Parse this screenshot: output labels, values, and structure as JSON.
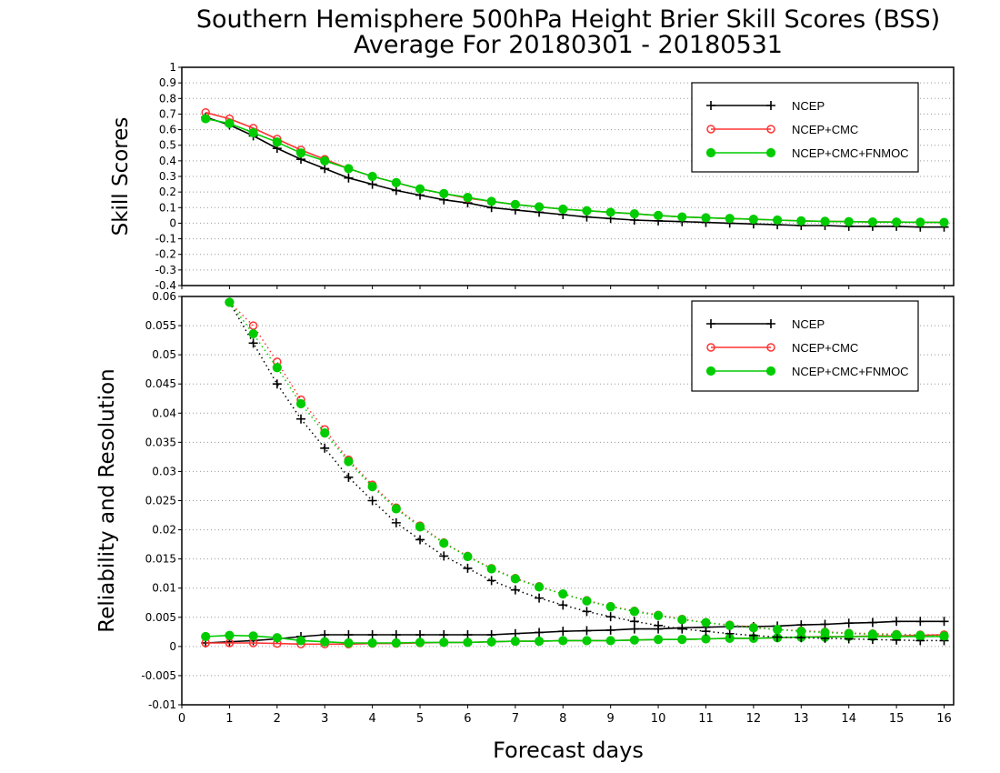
{
  "title_line1": "Southern Hemisphere 500hPa Height Brier Skill Scores (BSS)",
  "title_line2": "Average For 20180301 - 20180531",
  "xlabel": "Forecast days",
  "colors": {
    "NCEP": "#000000",
    "NCEP+CMC": "#ff3333",
    "NCEP+CMC+FNMOC": "#00cc00"
  },
  "chart_data": [
    {
      "type": "line",
      "ylabel": "Skill Scores",
      "xlim": [
        0,
        16.2
      ],
      "ylim": [
        -0.4,
        1
      ],
      "xticks": [
        "0",
        "1",
        "2",
        "3",
        "4",
        "5",
        "6",
        "7",
        "8",
        "9",
        "10",
        "11",
        "12",
        "13",
        "14",
        "15",
        "16"
      ],
      "yticks": [
        "-0.4",
        "-0.3",
        "-0.2",
        "-0.1",
        "0",
        "0.1",
        "0.2",
        "0.3",
        "0.4",
        "0.5",
        "0.6",
        "0.7",
        "0.8",
        "0.9",
        "1"
      ],
      "grid": true,
      "legend_position": "top-right",
      "x": [
        0.5,
        1,
        1.5,
        2,
        2.5,
        3,
        3.5,
        4,
        4.5,
        5,
        5.5,
        6,
        6.5,
        7,
        7.5,
        8,
        8.5,
        9,
        9.5,
        10,
        10.5,
        11,
        11.5,
        12,
        12.5,
        13,
        13.5,
        14,
        14.5,
        15,
        15.5,
        16
      ],
      "series": [
        {
          "name": "NCEP",
          "marker": "plus",
          "values": [
            0.68,
            0.63,
            0.56,
            0.48,
            0.41,
            0.35,
            0.29,
            0.25,
            0.21,
            0.18,
            0.15,
            0.13,
            0.1,
            0.085,
            0.07,
            0.055,
            0.04,
            0.03,
            0.02,
            0.015,
            0.01,
            0.005,
            0.0,
            -0.005,
            -0.01,
            -0.015,
            -0.015,
            -0.02,
            -0.02,
            -0.02,
            -0.025,
            -0.025
          ]
        },
        {
          "name": "NCEP+CMC",
          "marker": "circle-open",
          "values": [
            0.71,
            0.67,
            0.61,
            0.54,
            0.47,
            0.41,
            0.35,
            0.3,
            0.26,
            0.22,
            0.19,
            0.16,
            0.14,
            0.12,
            0.105,
            0.09,
            0.08,
            0.07,
            0.06,
            0.05,
            0.04,
            0.035,
            0.03,
            0.025,
            0.02,
            0.015,
            0.012,
            0.01,
            0.008,
            0.007,
            0.006,
            0.005
          ]
        },
        {
          "name": "NCEP+CMC+FNMOC",
          "marker": "circle-filled",
          "values": [
            0.67,
            0.64,
            0.58,
            0.52,
            0.45,
            0.4,
            0.35,
            0.3,
            0.26,
            0.22,
            0.19,
            0.165,
            0.14,
            0.12,
            0.105,
            0.09,
            0.08,
            0.07,
            0.06,
            0.05,
            0.04,
            0.035,
            0.03,
            0.025,
            0.02,
            0.015,
            0.012,
            0.01,
            0.008,
            0.007,
            0.006,
            0.005
          ]
        }
      ]
    },
    {
      "type": "line",
      "ylabel": "Reliability and Resolution",
      "xlim": [
        0,
        16.2
      ],
      "ylim": [
        -0.01,
        0.06
      ],
      "xticks": [
        "0",
        "1",
        "2",
        "3",
        "4",
        "5",
        "6",
        "7",
        "8",
        "9",
        "10",
        "11",
        "12",
        "13",
        "14",
        "15",
        "16"
      ],
      "yticks": [
        "-0.01",
        "-0.005",
        "0",
        "0.005",
        "0.01",
        "0.015",
        "0.02",
        "0.025",
        "0.03",
        "0.035",
        "0.04",
        "0.045",
        "0.05",
        "0.055",
        "0.06"
      ],
      "grid": true,
      "legend_position": "top-right",
      "x": [
        0.5,
        1,
        1.5,
        2,
        2.5,
        3,
        3.5,
        4,
        4.5,
        5,
        5.5,
        6,
        6.5,
        7,
        7.5,
        8,
        8.5,
        9,
        9.5,
        10,
        10.5,
        11,
        11.5,
        12,
        12.5,
        13,
        13.5,
        14,
        14.5,
        15,
        15.5,
        16
      ],
      "series": [
        {
          "name": "NCEP",
          "marker": "plus",
          "line": "solid",
          "values": [
            0.0006,
            0.0008,
            0.001,
            0.0013,
            0.0017,
            0.002,
            0.002,
            0.002,
            0.002,
            0.002,
            0.002,
            0.002,
            0.002,
            0.0022,
            0.0024,
            0.0026,
            0.0027,
            0.0028,
            0.003,
            0.003,
            0.0032,
            0.0033,
            0.0034,
            0.0034,
            0.0035,
            0.0037,
            0.0038,
            0.004,
            0.0041,
            0.0043,
            0.0043,
            0.0043
          ]
        },
        {
          "name": "NCEP+CMC",
          "marker": "circle-open",
          "line": "solid",
          "values": [
            0.0006,
            0.0006,
            0.0006,
            0.0005,
            0.0004,
            0.0004,
            0.0004,
            0.0005,
            0.0005,
            0.0006,
            0.0007,
            0.0007,
            0.0008,
            0.0009,
            0.0009,
            0.001,
            0.001,
            0.001,
            0.0011,
            0.0012,
            0.0012,
            0.0013,
            0.0014,
            0.0014,
            0.0015,
            0.0016,
            0.0017,
            0.0017,
            0.0018,
            0.0018,
            0.0019,
            0.002
          ]
        },
        {
          "name": "NCEP+CMC+FNMOC",
          "marker": "circle-filled",
          "line": "solid",
          "values": [
            0.0017,
            0.0019,
            0.0018,
            0.0015,
            0.001,
            0.0008,
            0.0006,
            0.0006,
            0.0006,
            0.0007,
            0.0007,
            0.0007,
            0.0008,
            0.0009,
            0.0009,
            0.001,
            0.001,
            0.001,
            0.0011,
            0.0012,
            0.0012,
            0.0013,
            0.0014,
            0.0014,
            0.0015,
            0.0016,
            0.0016,
            0.0017,
            0.0017,
            0.0017,
            0.0017,
            0.0017
          ]
        },
        {
          "name": "NCEP",
          "marker": "plus",
          "line": "dotted",
          "values": [
            null,
            0.059,
            0.052,
            0.045,
            0.039,
            0.034,
            0.029,
            0.025,
            0.0212,
            0.0183,
            0.0155,
            0.0134,
            0.0113,
            0.0097,
            0.0083,
            0.0071,
            0.006,
            0.0051,
            0.0043,
            0.0036,
            0.003,
            0.0026,
            0.0022,
            0.0019,
            0.0016,
            0.0015,
            0.0014,
            0.0013,
            0.0012,
            0.0011,
            0.001,
            0.001
          ]
        },
        {
          "name": "NCEP+CMC",
          "marker": "circle-open",
          "line": "dotted",
          "values": [
            null,
            0.059,
            0.055,
            0.0488,
            0.0423,
            0.0372,
            0.032,
            0.0277,
            0.0238,
            0.0207,
            0.0178,
            0.0155,
            0.0134,
            0.0117,
            0.0103,
            0.009,
            0.0079,
            0.0069,
            0.0061,
            0.0054,
            0.0047,
            0.0041,
            0.0037,
            0.0033,
            0.0029,
            0.0027,
            0.0025,
            0.0023,
            0.0022,
            0.0021,
            0.002,
            0.002
          ]
        },
        {
          "name": "NCEP+CMC+FNMOC",
          "marker": "circle-filled",
          "line": "dotted",
          "values": [
            null,
            0.059,
            0.0536,
            0.0478,
            0.0416,
            0.0366,
            0.0317,
            0.0274,
            0.0236,
            0.0205,
            0.0177,
            0.0154,
            0.0133,
            0.0116,
            0.0102,
            0.009,
            0.0078,
            0.0068,
            0.006,
            0.0053,
            0.0046,
            0.0041,
            0.0036,
            0.0032,
            0.0029,
            0.0026,
            0.0024,
            0.0022,
            0.0021,
            0.002,
            0.0019,
            0.0018
          ]
        }
      ]
    }
  ]
}
